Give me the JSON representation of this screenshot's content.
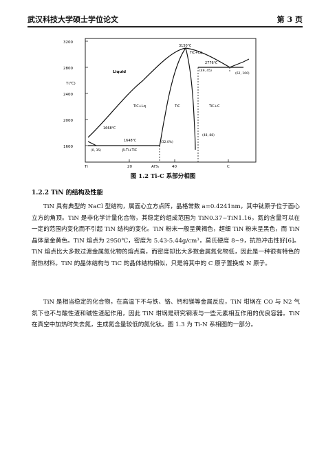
{
  "header": {
    "left": "武汉科技大学硕士学位论文",
    "right": "第 3 页"
  },
  "figure": {
    "caption": "图 1.2 Ti-C 系部分相图",
    "ylabel": "T(℃)",
    "y_ticks": [
      "3200",
      "2800",
      "2400",
      "2000",
      "1600"
    ],
    "x_ticks": [
      "Ti",
      "20",
      "At%",
      "40",
      "C"
    ],
    "labels": {
      "liquid": "Liquid",
      "temp_top": "3150℃",
      "tic_lq_right": "TiC+Lq",
      "temp_2776": "2776℃",
      "pt_49": "(49, 45)",
      "pt_100": "(62, 100)",
      "tic_lq_left": "TiC+Lq",
      "tic_mid": "TiC",
      "tic_c": "TiC+C",
      "temp_1668": "1668℃",
      "temp_1648": "1648℃",
      "pt_32": "(32.0%)",
      "pt_48": "(48, 88)",
      "pt_0": "(0, 35)",
      "beta_ti": "β-Ti+TiC"
    }
  },
  "section_title": "1.2.2 TiN 的结构及性能",
  "paragraph1": "TiN 具有典型的 NaCl 型结构，属面心立方点阵，晶格常数 a=0.4241nm，其中钛原子位于面心立方的角顶。TiN 是非化学计量化合物，其稳定的组成范围为 TiN0.37~TiN1.16，氮的含量可以在一定的范围内变化而不引起 TiN 结构的变化。TiN 粉末一般呈黄褐色，超细 TiN 粉末呈黑色，而 TiN 晶体呈金黄色。TiN 熔点为 2950℃，密度为 5.43-5.44g/cm³，莫氏硬度 8~9，抗热冲击性好[6]。TiN 熔点比大多数过渡金属氮化物的熔点高，而密度却比大多数金属氮化物低，因此是一种很有特色的耐热材料。TiN 的晶体结构与 TiC 的晶体结构相似，只是将其中的 C 原子置换成 N 原子。",
  "paragraph2": "TiN 是相当稳定的化合物，在高温下不与铁、铬、钙和镁等金属反应，TiN 坩埚在 CO 与 N2 气氛下也不与酸性渣和碱性渣起作用，因此 TiN 坩埚是研究钢液与一些元素相互作用的优良容器。TiN 在真空中加热时失去氮，生成氮含量较低的氮化钛。图 1.3 为 Ti-N 系相图的一部分。"
}
